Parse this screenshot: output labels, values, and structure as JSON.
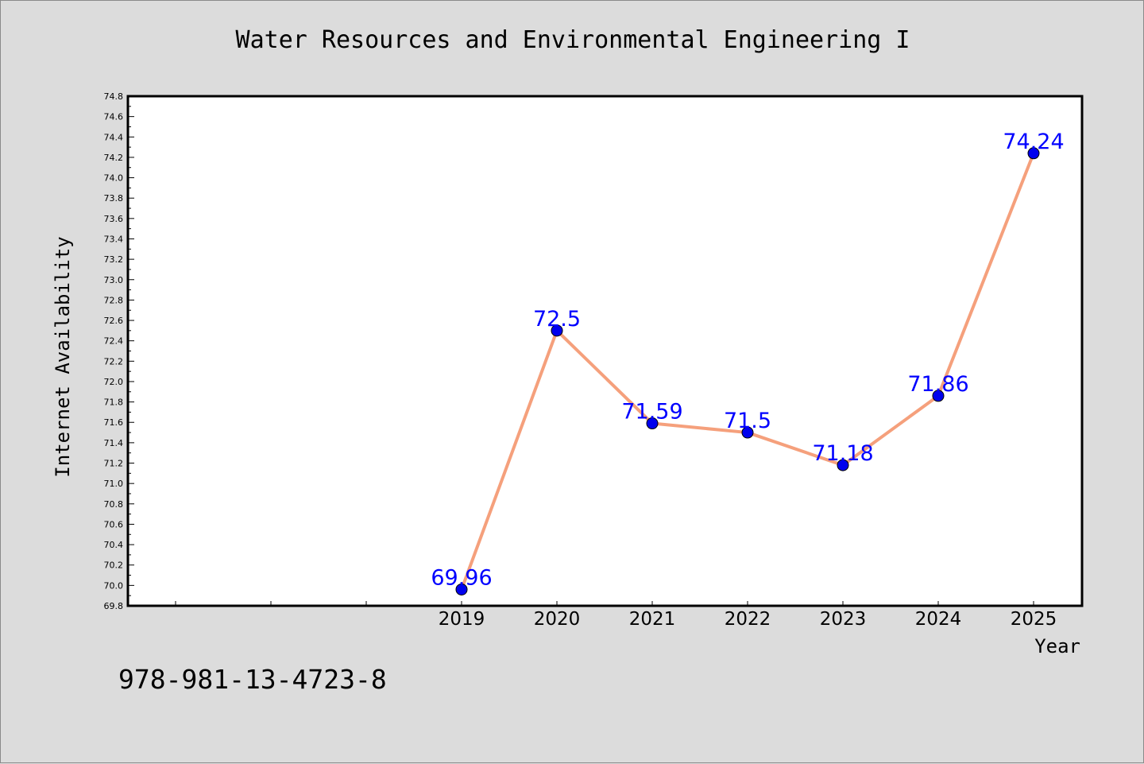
{
  "colors": {
    "background": "#dcdcdc",
    "plot_background": "#ffffff",
    "line": "#f5a07c",
    "marker": "#0000ee",
    "data_label": "#0000ff"
  },
  "footer": {
    "code": "978-981-13-4723-8"
  },
  "chart_data": {
    "type": "line",
    "title": "Water Resources and Environmental Engineering I",
    "xlabel": "Year",
    "ylabel": "Internet Availability",
    "x": [
      "2019",
      "2020",
      "2021",
      "2022",
      "2023",
      "2024",
      "2025"
    ],
    "series": [
      {
        "values": [
          69.96,
          72.5,
          71.59,
          71.5,
          71.18,
          71.86,
          74.24
        ]
      }
    ],
    "data_labels": [
      "69.96",
      "72.5",
      "71.59",
      "71.5",
      "71.18",
      "71.86",
      "74.24"
    ],
    "ylim": [
      69.8,
      74.8
    ],
    "y_tick_step": 0.2,
    "y_tick_labels": [
      "69.8",
      "70.0",
      "70.2",
      "70.4",
      "70.6",
      "70.8",
      "71.0",
      "71.2",
      "71.4",
      "71.6",
      "71.8",
      "72.0",
      "72.2",
      "72.4",
      "72.6",
      "72.8",
      "73.0",
      "73.2",
      "73.4",
      "73.6",
      "73.8",
      "74.0",
      "74.2",
      "74.4",
      "74.6",
      "74.8"
    ],
    "x_slots_before_data": 3,
    "grid": false,
    "legend": "none"
  }
}
